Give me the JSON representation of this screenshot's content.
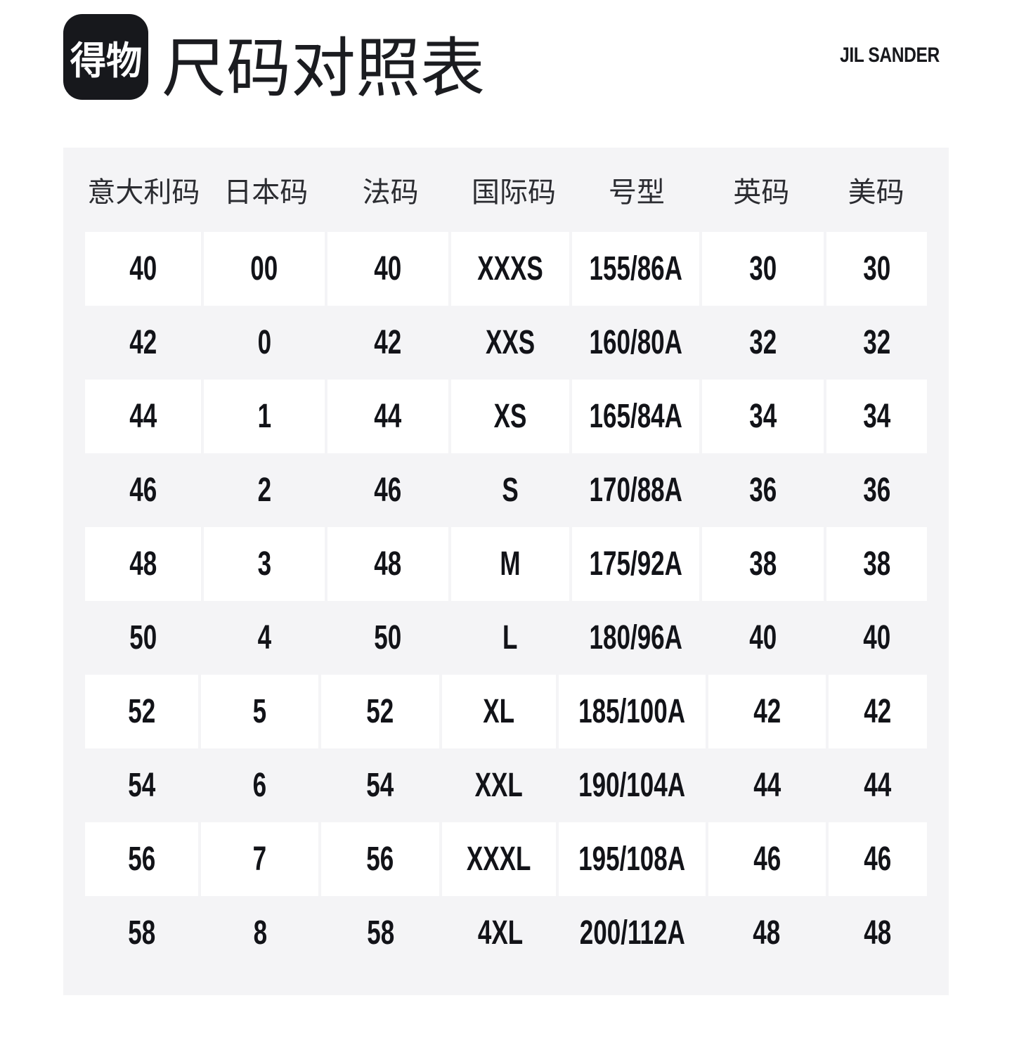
{
  "header": {
    "logo_text": "得物",
    "title": "尺码对照表",
    "brand": "JIL SANDER"
  },
  "chart_data": {
    "type": "table",
    "title": "尺码对照表",
    "columns": [
      "意大利码",
      "日本码",
      "法码",
      "国际码",
      "号型",
      "英码",
      "美码"
    ],
    "rows": [
      [
        "40",
        "00",
        "40",
        "XXXS",
        "155/86A",
        "30",
        "30"
      ],
      [
        "42",
        "0",
        "42",
        "XXS",
        "160/80A",
        "32",
        "32"
      ],
      [
        "44",
        "1",
        "44",
        "XS",
        "165/84A",
        "34",
        "34"
      ],
      [
        "46",
        "2",
        "46",
        "S",
        "170/88A",
        "36",
        "36"
      ],
      [
        "48",
        "3",
        "48",
        "M",
        "175/92A",
        "38",
        "38"
      ],
      [
        "50",
        "4",
        "50",
        "L",
        "180/96A",
        "40",
        "40"
      ],
      [
        "52",
        "5",
        "52",
        "XL",
        "185/100A",
        "42",
        "42"
      ],
      [
        "54",
        "6",
        "54",
        "XXL",
        "190/104A",
        "44",
        "44"
      ],
      [
        "56",
        "7",
        "56",
        "XXXL",
        "195/108A",
        "46",
        "46"
      ],
      [
        "58",
        "8",
        "58",
        "4XL",
        "200/112A",
        "48",
        "48"
      ]
    ],
    "layout": {
      "alternating_row_colors": true,
      "first_data_row_bg": "#ffffff",
      "second_data_row_bg": "#f4f4f6"
    }
  },
  "colors": {
    "page_bg": "#ffffff",
    "table_bg": "#f4f4f6",
    "row_alt_bg": "#ffffff",
    "header_text": "#2b2c31",
    "data_text": "#121318",
    "logo_bg": "#17181c",
    "logo_text_color": "#ffffff",
    "brand_text": "#17181c"
  }
}
